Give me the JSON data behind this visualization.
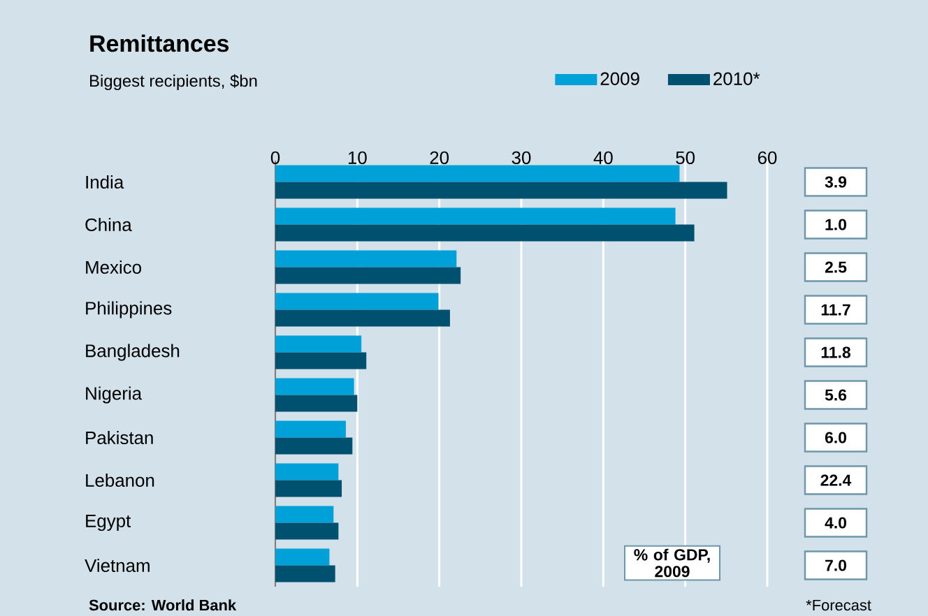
{
  "chart_data": {
    "type": "bar",
    "orientation": "horizontal",
    "title": "Remittances",
    "subtitle": "Biggest recipients, $bn",
    "categories": [
      "India",
      "China",
      "Mexico",
      "Philippines",
      "Bangladesh",
      "Nigeria",
      "Pakistan",
      "Lebanon",
      "Egypt",
      "Vietnam"
    ],
    "series": [
      {
        "name": "2009",
        "color": "#00a1d9",
        "values": [
          49.3,
          48.8,
          22.1,
          19.9,
          10.5,
          9.6,
          8.6,
          7.7,
          7.1,
          6.6
        ]
      },
      {
        "name": "2010*",
        "color": "#00506f",
        "values": [
          55.1,
          51.1,
          22.6,
          21.3,
          11.1,
          10.0,
          9.4,
          8.1,
          7.7,
          7.3
        ]
      }
    ],
    "xlim": [
      0,
      60
    ],
    "xticks": [
      0,
      10,
      20,
      30,
      40,
      50,
      60
    ],
    "grid": "x",
    "legend": "top right",
    "annotations": [
      "Source: World Bank",
      "*Forecast",
      "% of GDP, 2009",
      "3.9",
      "1.0",
      "2.5",
      "11.7",
      "11.8",
      "5.6",
      "6.0",
      "22.4",
      "4.0",
      "7.0"
    ]
  }
}
